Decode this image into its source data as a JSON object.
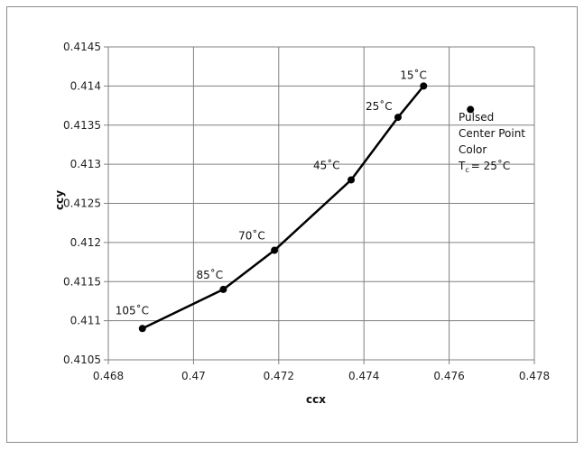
{
  "chart_data": {
    "type": "scatter",
    "title": "",
    "xlabel": "ccx",
    "ylabel": "ccy",
    "xlim": [
      0.468,
      0.478
    ],
    "ylim": [
      0.4105,
      0.4145
    ],
    "x_ticks": [
      "0.468",
      "0.47",
      "0.472",
      "0.474",
      "0.476",
      "0.478"
    ],
    "y_ticks": [
      "0.4105",
      "0.411",
      "0.4115",
      "0.412",
      "0.4125",
      "0.413",
      "0.4135",
      "0.414",
      "0.4145"
    ],
    "grid": true,
    "series": [
      {
        "style": "line-with-markers",
        "points": [
          {
            "x": 0.4688,
            "y": 0.4109,
            "label": "105˚C"
          },
          {
            "x": 0.4707,
            "y": 0.4114,
            "label": "85˚C"
          },
          {
            "x": 0.4719,
            "y": 0.4119,
            "label": "70˚C"
          },
          {
            "x": 0.4737,
            "y": 0.4128,
            "label": "45˚C"
          },
          {
            "x": 0.4748,
            "y": 0.4136,
            "label": "25˚C"
          },
          {
            "x": 0.4754,
            "y": 0.414,
            "label": "15˚C"
          }
        ]
      },
      {
        "style": "marker-only",
        "points": [
          {
            "x": 0.4765,
            "y": 0.4137
          }
        ]
      }
    ],
    "annotation": {
      "lines": [
        "Pulsed",
        "Center Point",
        "Color"
      ],
      "tc_main": "T",
      "tc_sub": "c",
      "tc_rest": "= 25˚C"
    },
    "colors": {
      "line": "#000000",
      "grid": "#808080",
      "axis": "#808080"
    }
  }
}
